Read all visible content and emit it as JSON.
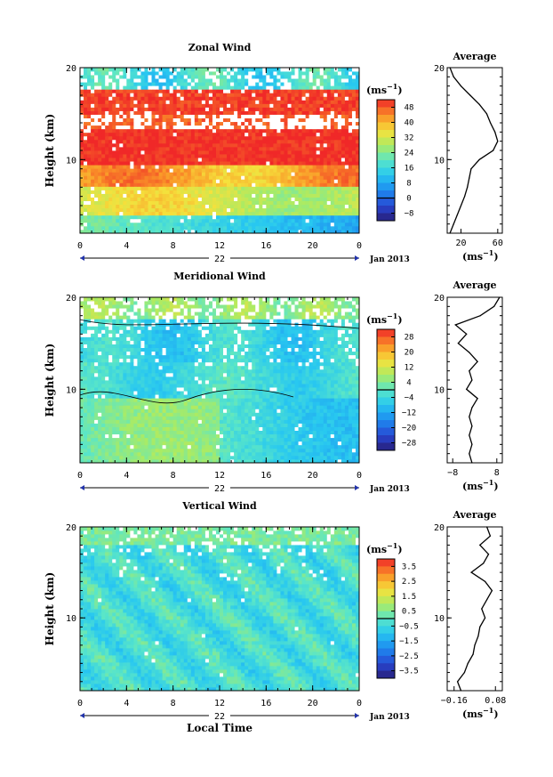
{
  "chart_data": [
    {
      "type": "heatmap",
      "title": "Zonal Wind",
      "ylabel": "Height (km)",
      "ylim": [
        2,
        20
      ],
      "yticks": [
        "20",
        "10"
      ],
      "xticks": [
        "0",
        "4",
        "8",
        "12",
        "16",
        "20",
        "0"
      ],
      "xlim": [
        0,
        24
      ],
      "date_label": "22",
      "date_suffix": "Jan 2013",
      "colorbar": {
        "unit": "(ms",
        "unit_sup": "−1",
        "unit_close": ")",
        "ticks": [
          "48",
          "40",
          "32",
          "24",
          "16",
          "8",
          "0",
          "−8"
        ],
        "range": [
          -12,
          52
        ]
      },
      "profile": {
        "title": "Average",
        "xticks": [
          "20",
          "60"
        ],
        "xlim": [
          5,
          65
        ],
        "unit": "(ms",
        "unit_sup": "−1",
        "unit_close": ")",
        "heights": [
          2,
          3,
          4,
          5,
          6,
          7,
          8,
          9,
          10,
          11,
          12,
          13,
          14,
          15,
          16,
          17,
          18,
          19,
          20
        ],
        "values": [
          8,
          12,
          16,
          20,
          24,
          27,
          29,
          31,
          40,
          55,
          60,
          57,
          52,
          48,
          40,
          30,
          20,
          12,
          8
        ]
      }
    },
    {
      "type": "heatmap",
      "title": "Meridional Wind",
      "ylabel": "Height (km)",
      "ylim": [
        2,
        20
      ],
      "yticks": [
        "20",
        "10"
      ],
      "xticks": [
        "0",
        "4",
        "8",
        "12",
        "16",
        "20",
        "0"
      ],
      "xlim": [
        0,
        24
      ],
      "date_label": "22",
      "date_suffix": "Jan 2013",
      "colorbar": {
        "unit": "(ms",
        "unit_sup": "−1",
        "unit_close": ")",
        "ticks": [
          "28",
          "20",
          "12",
          "4",
          "−4",
          "−12",
          "−20",
          "−28"
        ],
        "range": [
          -32,
          32
        ]
      },
      "profile": {
        "title": "Average",
        "xticks": [
          "−8",
          "8"
        ],
        "xlim": [
          -10,
          10
        ],
        "unit": "(ms",
        "unit_sup": "−1",
        "unit_close": ")",
        "heights": [
          2,
          3,
          4,
          5,
          6,
          7,
          8,
          9,
          10,
          11,
          12,
          13,
          14,
          15,
          16,
          17,
          18,
          19,
          20
        ],
        "values": [
          -1,
          -2,
          -1,
          -2,
          -1,
          -2,
          -1,
          1,
          -3,
          -1,
          -2,
          1,
          -2,
          -6,
          -3,
          -7,
          2,
          7,
          9
        ]
      }
    },
    {
      "type": "heatmap",
      "title": "Vertical Wind",
      "ylabel": "Height (km)",
      "ylim": [
        2,
        20
      ],
      "yticks": [
        "20",
        "10"
      ],
      "xticks": [
        "0",
        "4",
        "8",
        "12",
        "16",
        "20",
        "0"
      ],
      "xlim": [
        0,
        24
      ],
      "date_label": "22",
      "date_suffix": "Jan 2013",
      "xlabel": "Local Time",
      "colorbar": {
        "unit": "(ms",
        "unit_sup": "−1",
        "unit_close": ")",
        "ticks": [
          "3.5",
          "2.5",
          "1.5",
          "0.5",
          "−0.5",
          "−1.5",
          "−2.5",
          "−3.5"
        ],
        "range": [
          -4,
          4
        ]
      },
      "profile": {
        "title": "Average",
        "xticks": [
          "−0.16",
          "0.08"
        ],
        "xlim": [
          -0.2,
          0.12
        ],
        "unit": "(ms",
        "unit_sup": "−1",
        "unit_close": ")",
        "heights": [
          2,
          3,
          4,
          5,
          6,
          7,
          8,
          9,
          10,
          11,
          12,
          13,
          14,
          15,
          16,
          17,
          18,
          19,
          20
        ],
        "values": [
          -0.12,
          -0.14,
          -0.1,
          -0.08,
          -0.05,
          -0.04,
          -0.02,
          -0.01,
          0.02,
          0.0,
          0.03,
          0.06,
          0.02,
          -0.06,
          0.01,
          0.04,
          -0.01,
          0.05,
          0.03
        ]
      }
    }
  ]
}
